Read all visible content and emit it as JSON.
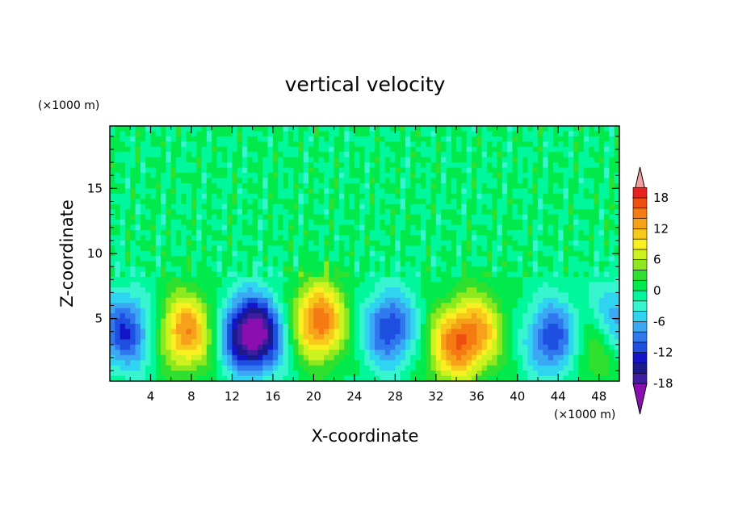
{
  "chart_data": {
    "type": "heatmap",
    "title": "vertical velocity",
    "xlabel": "X-coordinate",
    "ylabel": "Z-coordinate",
    "x_unit": "(×1000 m)",
    "y_unit": "(×1000 m)",
    "xlim": [
      0,
      50
    ],
    "ylim": [
      0.2,
      19.8
    ],
    "xticks": [
      "4",
      "8",
      "12",
      "16",
      "20",
      "24",
      "28",
      "32",
      "36",
      "40",
      "44",
      "48"
    ],
    "yticks": [
      "5",
      "10",
      "15"
    ],
    "colorbar": {
      "min": -20,
      "max": 20,
      "step": 2,
      "labels": [
        "18",
        "12",
        "6",
        "0",
        "-6",
        "-12",
        "-18"
      ],
      "label_values": [
        18,
        12,
        6,
        0,
        -6,
        -12,
        -18
      ],
      "colors": [
        "#8a0fb0",
        "#3f1fa0",
        "#1a1a8c",
        "#1414c8",
        "#1f4fe0",
        "#2f78ee",
        "#3aa8f3",
        "#2fd5f0",
        "#37f5cf",
        "#00f79c",
        "#00ea4c",
        "#2fe02f",
        "#8de81e",
        "#ccf21f",
        "#faf021",
        "#f7c91a",
        "#f7a11a",
        "#f57a12",
        "#f04f12",
        "#e8201f",
        "#f5a0a0"
      ]
    },
    "features": [
      {
        "x": 1.5,
        "z": 4.0,
        "w": -12
      },
      {
        "x": 7.5,
        "z": 4.0,
        "w": 14
      },
      {
        "x": 13.2,
        "z": 3.8,
        "w": -12
      },
      {
        "x": 14.8,
        "z": 3.8,
        "w": -12
      },
      {
        "x": 20.5,
        "z": 4.8,
        "w": 16
      },
      {
        "x": 27.5,
        "z": 4.2,
        "w": -12
      },
      {
        "x": 33.5,
        "z": 2.8,
        "w": 11
      },
      {
        "x": 36.0,
        "z": 4.0,
        "w": 11
      },
      {
        "x": 43.5,
        "z": 3.5,
        "w": -12
      },
      {
        "x": 47.5,
        "z": 3.0,
        "w": 6
      },
      {
        "x": 49.5,
        "z": 5.0,
        "w": -8
      }
    ]
  }
}
